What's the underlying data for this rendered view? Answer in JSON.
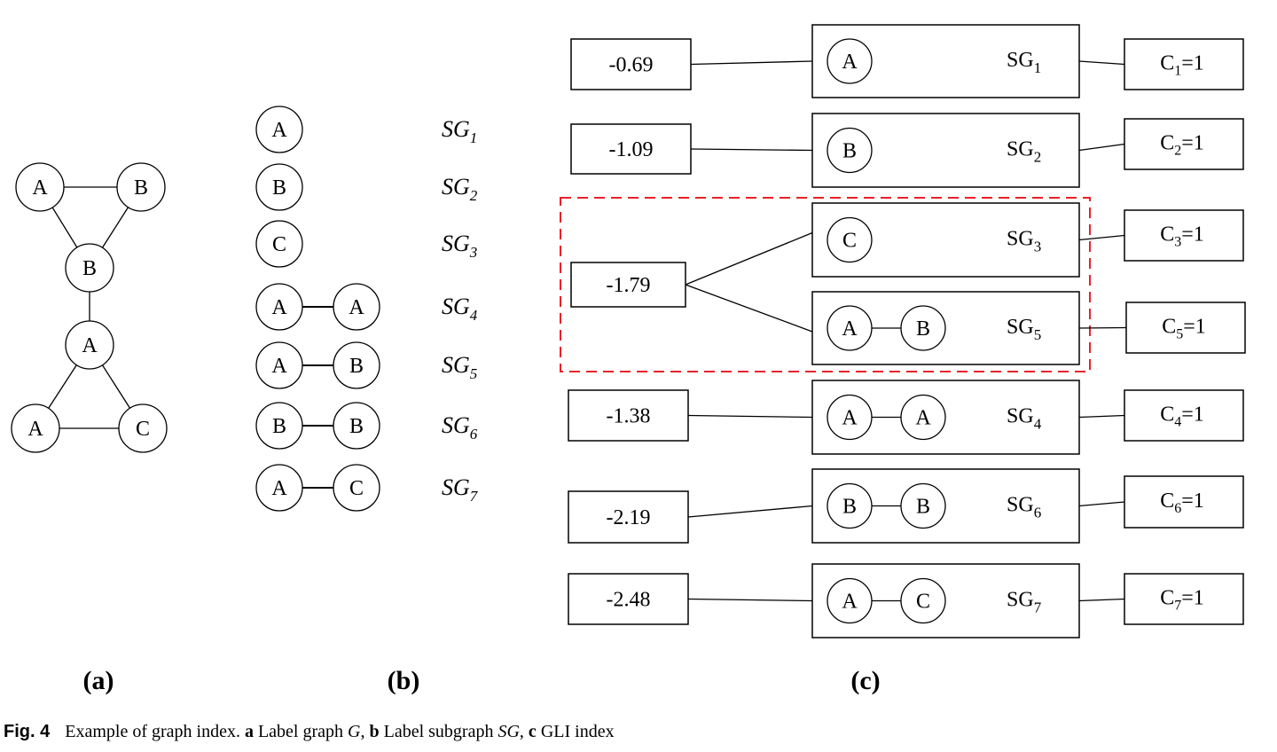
{
  "panel_labels": {
    "a": "(a)",
    "b": "(b)",
    "c": "(c)"
  },
  "graph_a": {
    "nodes": [
      "A",
      "B",
      "B",
      "A",
      "A",
      "C"
    ],
    "edges": [
      [
        0,
        1
      ],
      [
        0,
        2
      ],
      [
        1,
        2
      ],
      [
        2,
        3
      ],
      [
        3,
        4
      ],
      [
        3,
        5
      ],
      [
        4,
        5
      ]
    ]
  },
  "subgraphs_b": [
    {
      "nodes": [
        "A"
      ],
      "label": "SG",
      "sub": "1"
    },
    {
      "nodes": [
        "B"
      ],
      "label": "SG",
      "sub": "2"
    },
    {
      "nodes": [
        "C"
      ],
      "label": "SG",
      "sub": "3"
    },
    {
      "nodes": [
        "A",
        "A"
      ],
      "label": "SG",
      "sub": "4"
    },
    {
      "nodes": [
        "A",
        "B"
      ],
      "label": "SG",
      "sub": "5"
    },
    {
      "nodes": [
        "B",
        "B"
      ],
      "label": "SG",
      "sub": "6"
    },
    {
      "nodes": [
        "A",
        "C"
      ],
      "label": "SG",
      "sub": "7"
    }
  ],
  "index_c": {
    "keys": [
      "-0.69",
      "-1.09",
      "-1.79",
      "-1.38",
      "-2.19",
      "-2.48"
    ],
    "entries": [
      {
        "nodes": [
          "A"
        ],
        "sg": "SG",
        "sub": "1",
        "count": {
          "c": "C",
          "sub": "1",
          "val": "=1"
        },
        "key": 0
      },
      {
        "nodes": [
          "B"
        ],
        "sg": "SG",
        "sub": "2",
        "count": {
          "c": "C",
          "sub": "2",
          "val": "=1"
        },
        "key": 1
      },
      {
        "nodes": [
          "C"
        ],
        "sg": "SG",
        "sub": "3",
        "count": {
          "c": "C",
          "sub": "3",
          "val": "=1"
        },
        "key": 2
      },
      {
        "nodes": [
          "A",
          "B"
        ],
        "sg": "SG",
        "sub": "5",
        "count": {
          "c": "C",
          "sub": "5",
          "val": "=1"
        },
        "key": 2
      },
      {
        "nodes": [
          "A",
          "A"
        ],
        "sg": "SG",
        "sub": "4",
        "count": {
          "c": "C",
          "sub": "4",
          "val": "=1"
        },
        "key": 3
      },
      {
        "nodes": [
          "B",
          "B"
        ],
        "sg": "SG",
        "sub": "6",
        "count": {
          "c": "C",
          "sub": "6",
          "val": "=1"
        },
        "key": 4
      },
      {
        "nodes": [
          "A",
          "C"
        ],
        "sg": "SG",
        "sub": "7",
        "count": {
          "c": "C",
          "sub": "7",
          "val": "=1"
        },
        "key": 5
      }
    ],
    "highlight_color": "#e8202a"
  },
  "caption": {
    "fig": "Fig. 4",
    "text1": "Example of graph index.",
    "a": "a",
    "text_a": "Label graph",
    "g": "G",
    "b": "b",
    "text_b": "Label subgraph",
    "sg": "SG",
    "c": "c",
    "text_c": "GLI index"
  }
}
